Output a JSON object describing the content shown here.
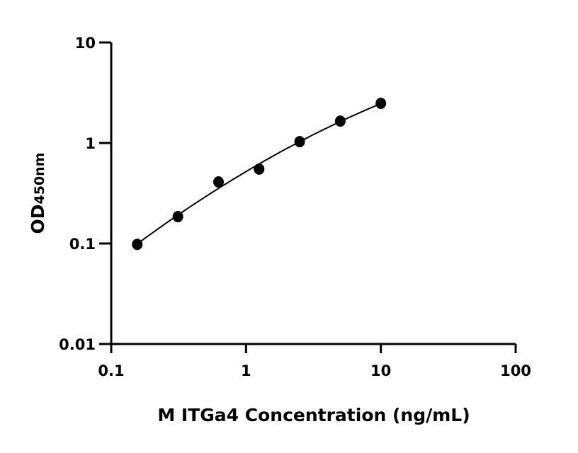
{
  "chart_data": {
    "type": "scatter",
    "xlabel": "M ITGa4 Concentration (ng/mL)",
    "ylabel": "OD",
    "ylabel_subscript": "450nm",
    "x_scale": "log",
    "y_scale": "log",
    "xlim": [
      0.1,
      100
    ],
    "ylim": [
      0.01,
      10
    ],
    "x_ticks": [
      "0.1",
      "1",
      "10",
      "100"
    ],
    "y_ticks": [
      "0.01",
      "0.1",
      "1",
      "10"
    ],
    "grid": false,
    "fit_curve": true,
    "marker_color": "#000000",
    "x": [
      0.156,
      0.3125,
      0.625,
      1.25,
      2.5,
      5,
      10
    ],
    "y": [
      0.098,
      0.185,
      0.41,
      0.55,
      1.03,
      1.65,
      2.48
    ]
  }
}
